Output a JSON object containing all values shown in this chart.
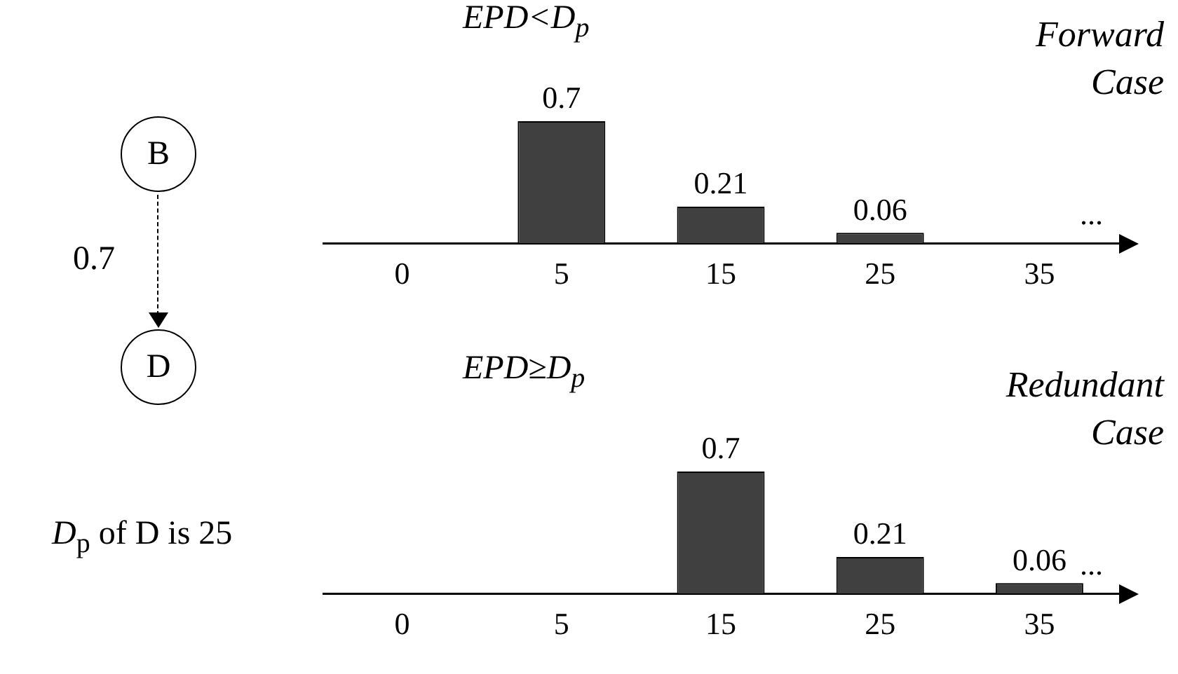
{
  "chart_data": [
    {
      "type": "bar",
      "title": "EPD<D$_{p}$",
      "categories": [
        "0",
        "5",
        "15",
        "25",
        "35"
      ],
      "values": [
        null,
        0.7,
        0.21,
        0.06,
        null
      ],
      "color": "#404040",
      "data_labels": true,
      "annotations": [
        "...",
        "Forward Case"
      ]
    },
    {
      "type": "bar",
      "title": "EPD≥D$_{p}$",
      "categories": [
        "0",
        "5",
        "15",
        "25",
        "35"
      ],
      "values": [
        null,
        null,
        0.7,
        0.21,
        0.06
      ],
      "color": "#404040",
      "data_labels": true,
      "annotations": [
        "...",
        "Redundant Case"
      ]
    },
    {
      "type": "other",
      "annotations": [
        "B",
        "0.7",
        "D",
        "D$_{p}$ of D is 25"
      ]
    }
  ]
}
